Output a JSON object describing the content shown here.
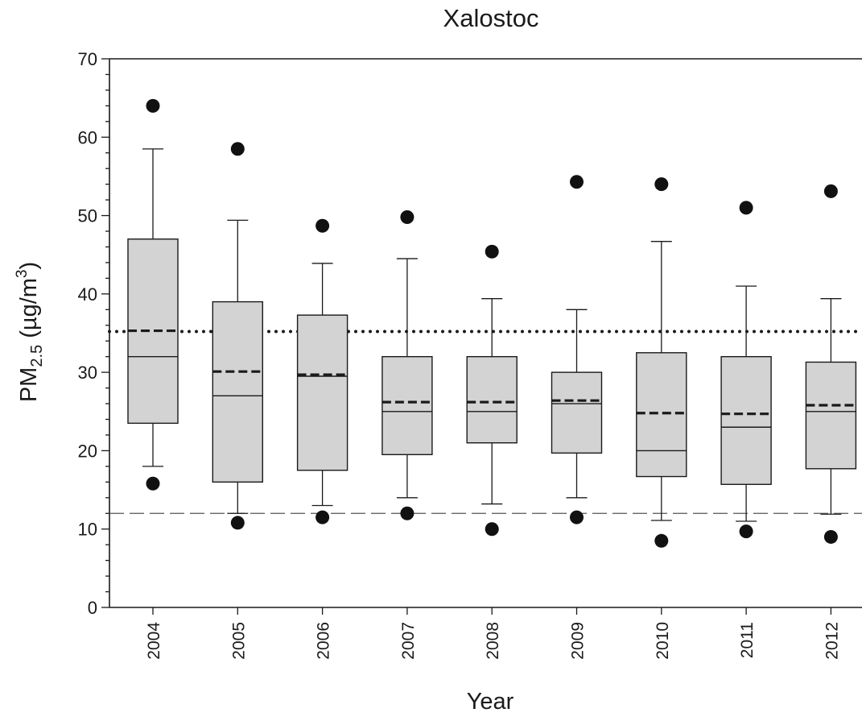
{
  "chart_data": {
    "type": "box",
    "title": "Xalostoc",
    "xlabel": "Year",
    "ylabel": {
      "prefix": "PM",
      "subscript": "2.5",
      "unit_open": " (µg/m",
      "superscript": "3",
      "unit_close": ")"
    },
    "ylim": [
      0,
      70
    ],
    "yticks": [
      0,
      10,
      20,
      30,
      40,
      50,
      60,
      70
    ],
    "ytick_labels": [
      "0",
      "10",
      "20",
      "30",
      "40",
      "50",
      "60",
      "70"
    ],
    "categories": [
      "2004",
      "2005",
      "2006",
      "2007",
      "2008",
      "2009",
      "2010",
      "2011",
      "2012"
    ],
    "boxes": [
      {
        "x": "2004",
        "whisker_low": 18.0,
        "q1": 23.5,
        "median": 32.0,
        "mean": 35.3,
        "q3": 47.0,
        "whisker_high": 58.5,
        "outlier_low": 15.8,
        "outlier_high": 64.0
      },
      {
        "x": "2005",
        "whisker_low": 12.0,
        "q1": 16.0,
        "median": 27.0,
        "mean": 30.1,
        "q3": 39.0,
        "whisker_high": 49.4,
        "outlier_low": 10.8,
        "outlier_high": 58.5
      },
      {
        "x": "2006",
        "whisker_low": 13.0,
        "q1": 17.5,
        "median": 29.5,
        "mean": 29.7,
        "q3": 37.3,
        "whisker_high": 43.9,
        "outlier_low": 11.5,
        "outlier_high": 48.7
      },
      {
        "x": "2007",
        "whisker_low": 14.0,
        "q1": 19.5,
        "median": 25.0,
        "mean": 26.2,
        "q3": 32.0,
        "whisker_high": 44.5,
        "outlier_low": 12.0,
        "outlier_high": 49.8
      },
      {
        "x": "2008",
        "whisker_low": 13.2,
        "q1": 21.0,
        "median": 25.0,
        "mean": 26.2,
        "q3": 32.0,
        "whisker_high": 39.4,
        "outlier_low": 10.0,
        "outlier_high": 45.4
      },
      {
        "x": "2009",
        "whisker_low": 14.0,
        "q1": 19.7,
        "median": 26.0,
        "mean": 26.4,
        "q3": 30.0,
        "whisker_high": 38.0,
        "outlier_low": 11.5,
        "outlier_high": 54.3
      },
      {
        "x": "2010",
        "whisker_low": 11.1,
        "q1": 16.7,
        "median": 20.0,
        "mean": 24.8,
        "q3": 32.5,
        "whisker_high": 46.7,
        "outlier_low": 8.5,
        "outlier_high": 54.0
      },
      {
        "x": "2011",
        "whisker_low": 11.0,
        "q1": 15.7,
        "median": 23.0,
        "mean": 24.7,
        "q3": 32.0,
        "whisker_high": 41.0,
        "outlier_low": 9.7,
        "outlier_high": 51.0
      },
      {
        "x": "2012",
        "whisker_low": 11.9,
        "q1": 17.7,
        "median": 25.0,
        "mean": 25.8,
        "q3": 31.3,
        "whisker_high": 39.4,
        "outlier_low": 9.0,
        "outlier_high": 53.1
      }
    ],
    "reference_lines": [
      {
        "style": "dotted",
        "y": 35.2
      },
      {
        "style": "dashed",
        "y": 12.0
      }
    ],
    "colors": {
      "box_fill": "#d3d3d3",
      "line": "#1a1a1a",
      "outlier": "#111111"
    },
    "grid": false,
    "legend": "none"
  }
}
